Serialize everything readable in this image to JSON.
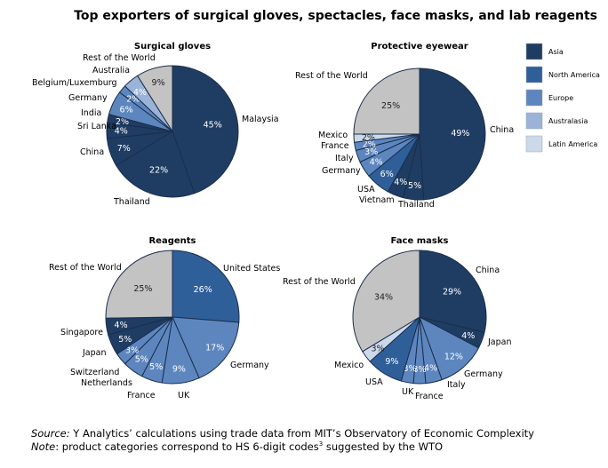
{
  "title": "Top exporters of surgical gloves, spectacles, face masks, and lab reagents",
  "colors": {
    "Asia": "#1f3d63",
    "North America": "#2f5f99",
    "Europe": "#5d86bf",
    "Australasia": "#9ab3d6",
    "Latin America": "#ccd9ea",
    "Rest of the World": "#c3c3c3",
    "stroke": "#1a2e4c"
  },
  "legend": {
    "placement": "right",
    "items": [
      "Asia",
      "North America",
      "Europe",
      "Australasia",
      "Latin America"
    ]
  },
  "chart_data": [
    {
      "type": "pie",
      "title": "Surgical gloves",
      "slices": [
        {
          "label": "Malaysia",
          "value": 45,
          "text": "45%",
          "region": "Asia"
        },
        {
          "label": "Thailand",
          "value": 22,
          "text": "22%",
          "region": "Asia"
        },
        {
          "label": "China",
          "value": 7,
          "text": "7%",
          "region": "Asia"
        },
        {
          "label": "Sri Lanka",
          "value": 4,
          "text": "4%",
          "region": "Asia"
        },
        {
          "label": "India",
          "value": 2,
          "text": "2%",
          "region": "Asia"
        },
        {
          "label": "Germany",
          "value": 6,
          "text": "6%",
          "region": "Europe"
        },
        {
          "label": "Belgium/Luxemburg",
          "value": 2,
          "text": "2%",
          "region": "Europe"
        },
        {
          "label": "Australia",
          "value": 4,
          "text": "4%",
          "region": "Australasia"
        },
        {
          "label": "Rest of the World",
          "value": 9,
          "text": "9%",
          "region": "Rest of the World"
        }
      ]
    },
    {
      "type": "pie",
      "title": "Protective eyewear",
      "slices": [
        {
          "label": "China",
          "value": 49,
          "text": "49%",
          "region": "Asia"
        },
        {
          "label": "Thailand",
          "value": 5,
          "text": "5%",
          "region": "Asia"
        },
        {
          "label": "Vietnam",
          "value": 4,
          "text": "4%",
          "region": "Asia"
        },
        {
          "label": "USA",
          "value": 6,
          "text": "6%",
          "region": "North America"
        },
        {
          "label": "Germany",
          "value": 4,
          "text": "4%",
          "region": "Europe"
        },
        {
          "label": "Italy",
          "value": 3,
          "text": "3%",
          "region": "Europe"
        },
        {
          "label": "France",
          "value": 2,
          "text": "2%",
          "region": "Europe"
        },
        {
          "label": "Mexico",
          "value": 2,
          "text": "2%",
          "region": "Latin America"
        },
        {
          "label": "Rest of the World",
          "value": 25,
          "text": "25%",
          "region": "Rest of the World"
        }
      ]
    },
    {
      "type": "pie",
      "title": "Reagents",
      "slices": [
        {
          "label": "United States",
          "value": 26,
          "text": "26%",
          "region": "North America"
        },
        {
          "label": "Germany",
          "value": 17,
          "text": "17%",
          "region": "Europe"
        },
        {
          "label": "UK",
          "value": 9,
          "text": "9%",
          "region": "Europe"
        },
        {
          "label": "France",
          "value": 5,
          "text": "5%",
          "region": "Europe"
        },
        {
          "label": "Netherlands",
          "value": 5,
          "text": "5%",
          "region": "Europe"
        },
        {
          "label": "Switzerland",
          "value": 3,
          "text": "3%",
          "region": "Europe"
        },
        {
          "label": "Japan",
          "value": 5,
          "text": "5%",
          "region": "Asia"
        },
        {
          "label": "Singapore",
          "value": 4,
          "text": "4%",
          "region": "Asia"
        },
        {
          "label": "Rest of the World",
          "value": 25,
          "text": "25%",
          "region": "Rest of the World"
        }
      ]
    },
    {
      "type": "pie",
      "title": "Face masks",
      "slices": [
        {
          "label": "China",
          "value": 29,
          "text": "29%",
          "region": "Asia"
        },
        {
          "label": "Japan",
          "value": 4,
          "text": "4%",
          "region": "Asia"
        },
        {
          "label": "Germany",
          "value": 12,
          "text": "12%",
          "region": "Europe"
        },
        {
          "label": "Italy",
          "value": 4,
          "text": "4%",
          "region": "Europe"
        },
        {
          "label": "France",
          "value": 3,
          "text": "3%",
          "region": "Europe"
        },
        {
          "label": "UK",
          "value": 3,
          "text": "3%",
          "region": "Europe"
        },
        {
          "label": "USA",
          "value": 9,
          "text": "9%",
          "region": "North America"
        },
        {
          "label": "Mexico",
          "value": 3,
          "text": "3%",
          "region": "Latin America"
        },
        {
          "label": "Rest of the World",
          "value": 34,
          "text": "34%",
          "region": "Rest of the World"
        }
      ]
    }
  ],
  "source": {
    "prefix": "Source:",
    "text": " Y Analytics’ calculations using trade data from MIT’s Observatory of Economic Complexity"
  },
  "note": {
    "prefix": "Note",
    "text": ": product categories correspond to HS 6-digit codes",
    "sup": "3",
    "suffix": " suggested by the WTO"
  }
}
